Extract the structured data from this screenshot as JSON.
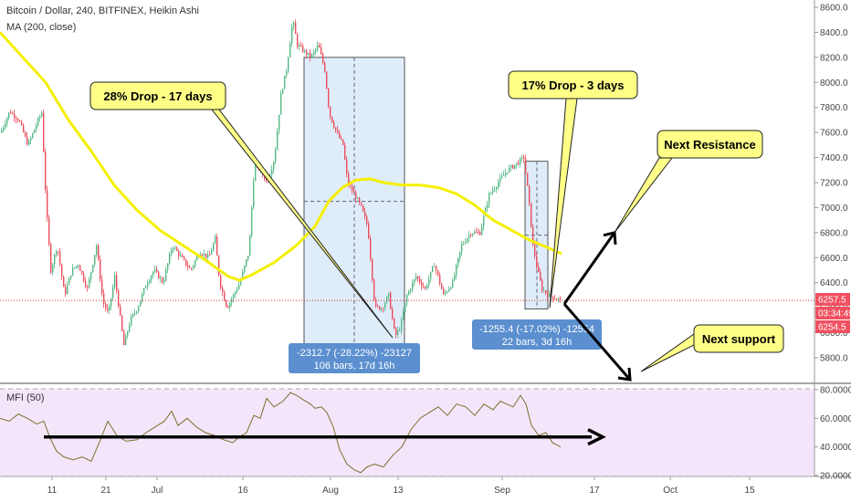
{
  "header": {
    "symbol_line": "Bitcoin / Dollar, 240, BITFINEX, Heikin Ashi",
    "indicator_line": "MA (200, close)"
  },
  "chart_data": [
    {
      "type": "candlestick",
      "title": "Bitcoin / Dollar, 240, BITFINEX, Heikin Ashi",
      "price_axis_ticks": [
        8600,
        8400,
        8200,
        8000,
        7800,
        7600,
        7400,
        7200,
        7000,
        6800,
        6600,
        6400,
        6200,
        6000,
        5800
      ],
      "price_axis_labels": [
        "8600.0",
        "8400.0",
        "8200.0",
        "8000.0",
        "7800.0",
        "7600.0",
        "7400.0",
        "7200.0",
        "7000.0",
        "6800.0",
        "6600.0",
        "6400.0",
        "6200.0",
        "6000.0",
        "5800.0"
      ],
      "ylim": [
        5610,
        8680
      ],
      "time_axis_labels": [
        "11",
        "21",
        "Jul",
        "16",
        "Aug",
        "13",
        "Sep",
        "17",
        "Oct",
        "15"
      ],
      "close_path": [
        [
          0,
          7600
        ],
        [
          10,
          7770
        ],
        [
          20,
          7700
        ],
        [
          30,
          7500
        ],
        [
          40,
          7680
        ],
        [
          45,
          7760
        ],
        [
          50,
          7000
        ],
        [
          55,
          6500
        ],
        [
          62,
          6700
        ],
        [
          70,
          6300
        ],
        [
          78,
          6500
        ],
        [
          85,
          6550
        ],
        [
          95,
          6350
        ],
        [
          105,
          6700
        ],
        [
          112,
          6250
        ],
        [
          118,
          6150
        ],
        [
          125,
          6450
        ],
        [
          135,
          5900
        ],
        [
          142,
          6100
        ],
        [
          150,
          6200
        ],
        [
          160,
          6400
        ],
        [
          168,
          6500
        ],
        [
          178,
          6400
        ],
        [
          188,
          6700
        ],
        [
          198,
          6600
        ],
        [
          208,
          6500
        ],
        [
          218,
          6650
        ],
        [
          228,
          6600
        ],
        [
          235,
          6750
        ],
        [
          240,
          6400
        ],
        [
          248,
          6200
        ],
        [
          255,
          6300
        ],
        [
          262,
          6400
        ],
        [
          272,
          6650
        ],
        [
          278,
          7350
        ],
        [
          285,
          7300
        ],
        [
          292,
          7200
        ],
        [
          300,
          7400
        ],
        [
          307,
          7900
        ],
        [
          313,
          8100
        ],
        [
          320,
          8500
        ],
        [
          325,
          8300
        ],
        [
          332,
          8250
        ],
        [
          340,
          8200
        ],
        [
          348,
          8300
        ],
        [
          355,
          8100
        ],
        [
          360,
          7750
        ],
        [
          368,
          7600
        ],
        [
          375,
          7500
        ],
        [
          380,
          7200
        ],
        [
          388,
          7100
        ],
        [
          395,
          7000
        ],
        [
          402,
          6850
        ],
        [
          410,
          6200
        ],
        [
          418,
          6200
        ],
        [
          425,
          6300
        ],
        [
          432,
          5970
        ],
        [
          438,
          6050
        ],
        [
          445,
          6300
        ],
        [
          455,
          6450
        ],
        [
          465,
          6350
        ],
        [
          475,
          6550
        ],
        [
          485,
          6300
        ],
        [
          495,
          6400
        ],
        [
          505,
          6700
        ],
        [
          515,
          6800
        ],
        [
          525,
          6800
        ],
        [
          535,
          7100
        ],
        [
          545,
          7200
        ],
        [
          555,
          7300
        ],
        [
          565,
          7350
        ],
        [
          573,
          7400
        ],
        [
          578,
          7100
        ],
        [
          583,
          6700
        ],
        [
          588,
          6500
        ],
        [
          593,
          6350
        ],
        [
          600,
          6300
        ],
        [
          607,
          6280
        ],
        [
          614,
          6260
        ]
      ],
      "ma_200": [
        [
          0,
          8400
        ],
        [
          25,
          8200
        ],
        [
          50,
          8000
        ],
        [
          75,
          7700
        ],
        [
          100,
          7450
        ],
        [
          125,
          7180
        ],
        [
          150,
          6980
        ],
        [
          175,
          6820
        ],
        [
          200,
          6700
        ],
        [
          225,
          6580
        ],
        [
          250,
          6450
        ],
        [
          262,
          6420
        ],
        [
          275,
          6460
        ],
        [
          300,
          6560
        ],
        [
          325,
          6700
        ],
        [
          345,
          6850
        ],
        [
          360,
          7050
        ],
        [
          375,
          7160
        ],
        [
          390,
          7220
        ],
        [
          405,
          7230
        ],
        [
          420,
          7200
        ],
        [
          440,
          7180
        ],
        [
          460,
          7180
        ],
        [
          480,
          7160
        ],
        [
          500,
          7110
        ],
        [
          520,
          7020
        ],
        [
          540,
          6900
        ],
        [
          560,
          6820
        ],
        [
          580,
          6740
        ],
        [
          600,
          6680
        ],
        [
          615,
          6630
        ]
      ],
      "current_price_label": "6257.5",
      "countdown_label": "03:34:49",
      "second_price_label": "6254.5",
      "measurements": [
        {
          "top_price": 8200,
          "bottom_price": 5910,
          "mid_price": 7050,
          "line1": "-2312.7 (-28.22%) -23127",
          "line2": "106 bars, 17d 16h"
        },
        {
          "top_price": 7370,
          "bottom_price": 6190,
          "mid_price": 6780,
          "line1": "-1255.4 (-17.02%) -12554",
          "line2": "22 bars, 3d 16h"
        }
      ],
      "callouts": [
        {
          "text": "28% Drop - 17 days",
          "target_price": 5960
        },
        {
          "text": "17% Drop -  3 days",
          "target_price": 6200
        },
        {
          "text": "Next Resistance",
          "target_price": 6800
        },
        {
          "text": "Next support",
          "target_price": 5790
        }
      ],
      "arrows": {
        "resistance_from": 6230,
        "resistance_to": 6800,
        "support_from": 6230,
        "support_to": 5800
      },
      "colors": {
        "ma": "#f5ef00",
        "up": "#53b987",
        "down": "#eb4d5c",
        "callout": "#ffff88",
        "measure_box": "#d4e6f8",
        "measure_label": "#5b8fcf"
      }
    },
    {
      "type": "line",
      "title": "MFI (50)",
      "axis_labels": [
        "80.0000",
        "60.0000",
        "40.0000",
        "20.0000"
      ],
      "axis_ticks": [
        80,
        60,
        40,
        20
      ],
      "ylim": [
        15,
        84
      ],
      "values": [
        [
          0,
          60
        ],
        [
          10,
          58
        ],
        [
          20,
          63
        ],
        [
          30,
          60
        ],
        [
          40,
          56
        ],
        [
          48,
          58
        ],
        [
          55,
          46
        ],
        [
          62,
          37
        ],
        [
          70,
          33
        ],
        [
          80,
          31
        ],
        [
          90,
          33
        ],
        [
          100,
          30
        ],
        [
          110,
          45
        ],
        [
          118,
          58
        ],
        [
          128,
          48
        ],
        [
          138,
          44
        ],
        [
          150,
          45
        ],
        [
          160,
          50
        ],
        [
          170,
          54
        ],
        [
          180,
          58
        ],
        [
          188,
          65
        ],
        [
          195,
          55
        ],
        [
          205,
          60
        ],
        [
          215,
          54
        ],
        [
          225,
          50
        ],
        [
          235,
          48
        ],
        [
          245,
          45
        ],
        [
          255,
          43
        ],
        [
          262,
          47
        ],
        [
          270,
          50
        ],
        [
          278,
          62
        ],
        [
          285,
          60
        ],
        [
          292,
          74
        ],
        [
          300,
          68
        ],
        [
          310,
          72
        ],
        [
          318,
          78
        ],
        [
          325,
          76
        ],
        [
          332,
          73
        ],
        [
          340,
          70
        ],
        [
          345,
          67
        ],
        [
          352,
          68
        ],
        [
          358,
          64
        ],
        [
          365,
          54
        ],
        [
          372,
          38
        ],
        [
          380,
          28
        ],
        [
          388,
          24
        ],
        [
          395,
          22
        ],
        [
          402,
          26
        ],
        [
          410,
          28
        ],
        [
          420,
          26
        ],
        [
          430,
          34
        ],
        [
          440,
          40
        ],
        [
          450,
          52
        ],
        [
          460,
          60
        ],
        [
          470,
          64
        ],
        [
          480,
          68
        ],
        [
          490,
          62
        ],
        [
          500,
          70
        ],
        [
          510,
          68
        ],
        [
          520,
          62
        ],
        [
          530,
          70
        ],
        [
          540,
          66
        ],
        [
          548,
          72
        ],
        [
          555,
          70
        ],
        [
          562,
          68
        ],
        [
          570,
          76
        ],
        [
          576,
          70
        ],
        [
          582,
          55
        ],
        [
          590,
          48
        ],
        [
          598,
          50
        ],
        [
          605,
          43
        ],
        [
          614,
          40
        ]
      ],
      "support_line_value": 47
    }
  ]
}
